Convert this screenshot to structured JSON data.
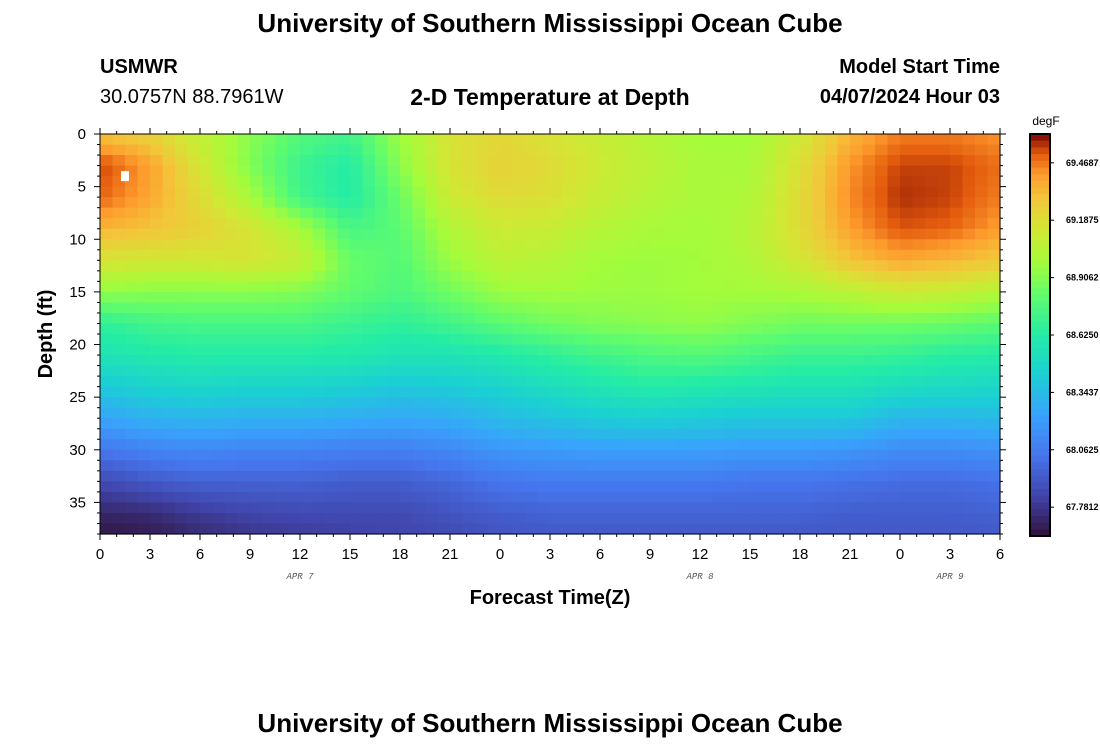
{
  "header": {
    "title": "University of Southern Mississippi Ocean Cube",
    "station": "USMWR",
    "coords": "30.0757N  88.7961W",
    "subtitle": "2-D Temperature at Depth",
    "model_start_label": "Model Start Time",
    "model_start_value": "04/07/2024 Hour 03"
  },
  "footer": {
    "title": "University of Southern Mississippi Ocean Cube"
  },
  "chart_data": {
    "type": "heatmap",
    "xlabel": "Forecast Time(Z)",
    "ylabel": "Depth (ft)",
    "x_ticks": [
      "0",
      "3",
      "6",
      "9",
      "12",
      "15",
      "18",
      "21",
      "0",
      "3",
      "6",
      "9",
      "12",
      "15",
      "18",
      "21",
      "0",
      "3",
      "6"
    ],
    "x_range_hours": [
      0,
      54
    ],
    "day_labels": [
      {
        "label": "APR 7",
        "hour": 12
      },
      {
        "label": "APR 8",
        "hour": 36
      },
      {
        "label": "APR 9",
        "hour": 51
      }
    ],
    "y_ticks": [
      "0",
      "5",
      "10",
      "15",
      "20",
      "25",
      "30",
      "35"
    ],
    "ylim": [
      0,
      38
    ],
    "y_inverted": true,
    "colorbar": {
      "unit": "degF",
      "min": 67.64,
      "max": 69.61,
      "labels": [
        "69.4687",
        "69.1875",
        "68.9062",
        "68.6250",
        "68.3437",
        "68.0625",
        "67.7812"
      ],
      "label_values": [
        69.4687,
        69.1875,
        68.9062,
        68.625,
        68.3437,
        68.0625,
        67.7812
      ]
    },
    "marker": {
      "hour": 1.5,
      "depth": 4
    },
    "depths_ft": [
      0,
      3,
      6,
      9,
      12,
      15,
      18,
      21,
      24,
      27,
      30,
      33,
      36,
      38
    ],
    "hours": [
      0,
      3,
      6,
      9,
      12,
      15,
      18,
      21,
      24,
      27,
      30,
      33,
      36,
      39,
      42,
      45,
      48,
      51,
      54
    ],
    "values_degF": [
      [
        69.3,
        69.24,
        69.08,
        68.92,
        68.78,
        68.72,
        68.96,
        69.16,
        69.22,
        69.16,
        69.1,
        69.04,
        68.98,
        68.98,
        69.12,
        69.34,
        69.46,
        69.46,
        69.42
      ],
      [
        69.54,
        69.4,
        69.15,
        68.9,
        68.7,
        68.62,
        68.92,
        69.16,
        69.24,
        69.2,
        69.12,
        69.06,
        69.0,
        69.0,
        69.18,
        69.42,
        69.54,
        69.54,
        69.48
      ],
      [
        69.5,
        69.38,
        69.2,
        69.0,
        68.72,
        68.62,
        68.84,
        69.12,
        69.2,
        69.18,
        69.1,
        69.04,
        69.0,
        69.02,
        69.2,
        69.44,
        69.56,
        69.54,
        69.46
      ],
      [
        69.34,
        69.3,
        69.24,
        69.16,
        69.0,
        68.74,
        68.8,
        69.02,
        69.12,
        69.1,
        69.04,
        69.0,
        68.98,
        69.04,
        69.2,
        69.4,
        69.52,
        69.5,
        69.4
      ],
      [
        69.16,
        69.14,
        69.14,
        69.16,
        69.1,
        68.84,
        68.78,
        68.96,
        69.06,
        69.04,
        68.98,
        68.96,
        68.98,
        69.02,
        69.14,
        69.3,
        69.38,
        69.34,
        69.28
      ],
      [
        68.94,
        68.92,
        68.92,
        68.92,
        68.9,
        68.82,
        68.76,
        68.86,
        68.96,
        68.98,
        68.96,
        68.96,
        68.98,
        68.98,
        69.0,
        69.06,
        69.12,
        69.1,
        69.04
      ],
      [
        68.66,
        68.72,
        68.74,
        68.74,
        68.74,
        68.7,
        68.66,
        68.72,
        68.8,
        68.86,
        68.9,
        68.92,
        68.94,
        68.9,
        68.86,
        68.86,
        68.86,
        68.84,
        68.8
      ],
      [
        68.56,
        68.6,
        68.62,
        68.62,
        68.62,
        68.6,
        68.56,
        68.56,
        68.6,
        68.66,
        68.72,
        68.76,
        68.78,
        68.74,
        68.7,
        68.7,
        68.68,
        68.64,
        68.62
      ],
      [
        68.4,
        68.46,
        68.48,
        68.46,
        68.46,
        68.44,
        68.4,
        68.42,
        68.46,
        68.52,
        68.58,
        68.62,
        68.6,
        68.58,
        68.56,
        68.56,
        68.52,
        68.5,
        68.48
      ],
      [
        68.24,
        68.3,
        68.32,
        68.3,
        68.3,
        68.28,
        68.26,
        68.28,
        68.34,
        68.38,
        68.42,
        68.44,
        68.42,
        68.4,
        68.4,
        68.4,
        68.32,
        68.32,
        68.34
      ],
      [
        68.04,
        68.1,
        68.12,
        68.1,
        68.1,
        68.08,
        68.08,
        68.12,
        68.18,
        68.2,
        68.22,
        68.22,
        68.22,
        68.2,
        68.2,
        68.18,
        68.14,
        68.14,
        68.16
      ],
      [
        67.86,
        67.92,
        67.96,
        67.96,
        67.96,
        67.94,
        67.94,
        67.98,
        68.04,
        68.06,
        68.06,
        68.06,
        68.06,
        68.04,
        68.04,
        68.02,
        68.0,
        68.0,
        68.02
      ],
      [
        67.72,
        67.74,
        67.8,
        67.84,
        67.86,
        67.86,
        67.86,
        67.9,
        67.94,
        67.96,
        67.96,
        67.96,
        67.96,
        67.96,
        67.96,
        67.94,
        67.94,
        67.94,
        67.96
      ],
      [
        67.66,
        67.68,
        67.74,
        67.78,
        67.8,
        67.82,
        67.84,
        67.86,
        67.9,
        67.92,
        67.92,
        67.92,
        67.92,
        67.92,
        67.92,
        67.92,
        67.92,
        67.92,
        67.92
      ]
    ]
  }
}
